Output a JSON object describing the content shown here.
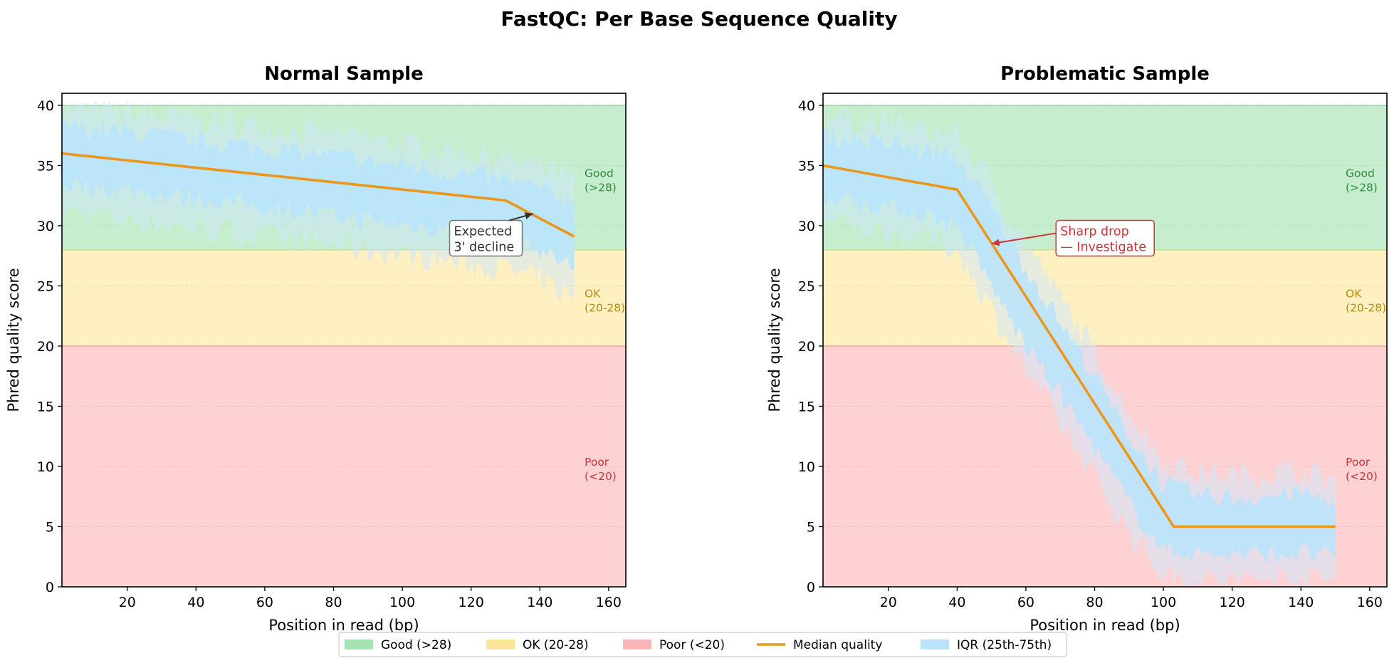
{
  "title": "FastQC: Per Base Sequence Quality",
  "colors": {
    "good": "#a3e4b0",
    "ok": "#fde69a",
    "poor": "#fdb4b6",
    "median": "#ee961c",
    "iqr": "#b8e4fb",
    "iqr_light": "#cfe8f8",
    "good_text": "#2e8b3e",
    "ok_text": "#b78d0a",
    "poor_text": "#d0343a",
    "alert": "#d0343a",
    "neutral": "#333333"
  },
  "legend": {
    "placement": "bottom-center",
    "items": [
      {
        "label": "Good (>28)",
        "color": "#a3e4b0",
        "kind": "patch"
      },
      {
        "label": "OK (20-28)",
        "color": "#fde69a",
        "kind": "patch"
      },
      {
        "label": "Poor (<20)",
        "color": "#fdb4b6",
        "kind": "patch"
      },
      {
        "label": "Median quality",
        "color": "#ee961c",
        "kind": "line"
      },
      {
        "label": "IQR (25th-75th)",
        "color": "#b8e4fb",
        "kind": "patch"
      }
    ]
  },
  "chart_data": [
    {
      "type": "area",
      "title": "Normal Sample",
      "xlabel": "Position in read (bp)",
      "ylabel": "Phred quality score",
      "xlim": [
        1,
        165
      ],
      "ylim": [
        0,
        41
      ],
      "xticks": [
        20,
        40,
        60,
        80,
        100,
        120,
        140,
        160
      ],
      "yticks": [
        0,
        5,
        10,
        15,
        20,
        25,
        30,
        35,
        40
      ],
      "grid": true,
      "zones": [
        {
          "name": "Good",
          "from": 28,
          "to": 40,
          "label_line1": "Good",
          "label_line2": "(>28)"
        },
        {
          "name": "OK",
          "from": 20,
          "to": 28,
          "label_line1": "OK",
          "label_line2": "(20-28)"
        },
        {
          "name": "Poor",
          "from": 0,
          "to": 20,
          "label_line1": "Poor",
          "label_line2": "(<20)"
        }
      ],
      "median": {
        "x": [
          1,
          130,
          150
        ],
        "y": [
          36,
          32.1,
          29.1
        ]
      },
      "iqr": {
        "x": [
          1,
          10,
          20,
          30,
          40,
          50,
          60,
          70,
          80,
          90,
          100,
          110,
          120,
          130,
          140,
          150
        ],
        "q25": [
          33.5,
          33.2,
          32.9,
          32.6,
          32.2,
          31.9,
          31.5,
          31.2,
          30.8,
          30.4,
          30.1,
          29.8,
          29.4,
          29.0,
          28.0,
          26.5
        ],
        "q75": [
          38.2,
          38.0,
          37.7,
          37.4,
          37.0,
          36.8,
          36.4,
          36.1,
          35.8,
          35.4,
          35.0,
          34.6,
          34.2,
          33.8,
          33.0,
          32.0
        ],
        "low": [
          31.5,
          31.0,
          30.5,
          30.2,
          29.8,
          29.5,
          29.0,
          28.8,
          28.4,
          28.0,
          27.6,
          27.2,
          26.8,
          26.4,
          25.5,
          24.0
        ],
        "high": [
          39.6,
          39.5,
          39.3,
          39.0,
          38.8,
          38.5,
          38.2,
          37.9,
          37.6,
          37.2,
          36.8,
          36.4,
          36.0,
          35.6,
          34.8,
          33.8
        ]
      },
      "annotation": {
        "line1": "Expected",
        "line2": "3' decline",
        "arrow_to": [
          138,
          31
        ],
        "text_at": [
          115,
          29.2
        ],
        "style": "neutral"
      }
    },
    {
      "type": "area",
      "title": "Problematic Sample",
      "xlabel": "Position in read (bp)",
      "ylabel": "Phred quality score",
      "xlim": [
        1,
        165
      ],
      "ylim": [
        0,
        41
      ],
      "xticks": [
        20,
        40,
        60,
        80,
        100,
        120,
        140,
        160
      ],
      "yticks": [
        0,
        5,
        10,
        15,
        20,
        25,
        30,
        35,
        40
      ],
      "grid": true,
      "zones": [
        {
          "name": "Good",
          "from": 28,
          "to": 40,
          "label_line1": "Good",
          "label_line2": "(>28)"
        },
        {
          "name": "OK",
          "from": 20,
          "to": 28,
          "label_line1": "OK",
          "label_line2": "(20-28)"
        },
        {
          "name": "Poor",
          "from": 0,
          "to": 20,
          "label_line1": "Poor",
          "label_line2": "(<20)"
        }
      ],
      "median": {
        "x": [
          1,
          40,
          103,
          150
        ],
        "y": [
          35,
          33,
          5,
          5
        ]
      },
      "iqr": {
        "x": [
          1,
          10,
          20,
          30,
          40,
          50,
          60,
          70,
          80,
          90,
          100,
          110,
          120,
          130,
          140,
          150
        ],
        "q25": [
          32.5,
          32.0,
          31.5,
          31.0,
          30.0,
          25.0,
          20.0,
          16.0,
          11.5,
          7.0,
          3.0,
          2.8,
          2.6,
          2.7,
          2.8,
          2.5
        ],
        "q75": [
          37.5,
          37.2,
          36.8,
          36.3,
          35.5,
          31.5,
          26.5,
          22.0,
          17.5,
          12.5,
          8.5,
          7.6,
          7.4,
          7.5,
          7.8,
          7.0
        ],
        "low": [
          30.5,
          30.0,
          29.5,
          29.0,
          28.0,
          23.0,
          18.0,
          13.5,
          9.0,
          4.5,
          1.0,
          0.5,
          0.5,
          0.6,
          0.7,
          0.5
        ],
        "high": [
          39.0,
          38.8,
          38.5,
          38.0,
          37.5,
          33.5,
          28.5,
          24.0,
          19.5,
          14.5,
          10.5,
          9.5,
          9.3,
          9.4,
          9.6,
          9.0
        ]
      },
      "annotation": {
        "line1": "Sharp drop",
        "line2": "— Investigate",
        "arrow_to": [
          50,
          28.5
        ],
        "text_at": [
          70,
          29.2
        ],
        "style": "alert"
      }
    }
  ]
}
